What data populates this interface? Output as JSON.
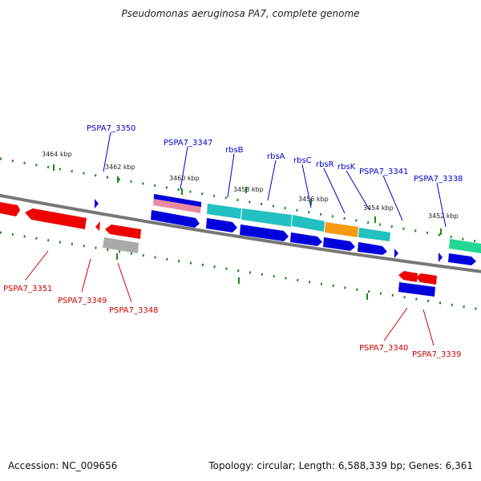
{
  "title": "Pseudomonas aeruginosa PA7, complete genome",
  "footer": {
    "accession": "Accession: NC_009656",
    "summary": "Topology: circular; Length: 6,588,339 bp; Genes: 6,361"
  },
  "scale_labels": [
    "3464 kbp",
    "3462 kbp",
    "3460 kbp",
    "3458 kbp",
    "3456 kbp",
    "3454 kbp",
    "3452 kbp"
  ],
  "top_labels": [
    "PSPA7_3350",
    "PSPA7_3347",
    "rbsB",
    "rbsA",
    "rbsC",
    "rbsR",
    "rbsK",
    "PSPA7_3341",
    "PSPA7_3338"
  ],
  "bottom_labels": [
    "PSPA7_3351",
    "PSPA7_3349",
    "PSPA7_3348",
    "PSPA7_3340",
    "PSPA7_3339"
  ],
  "colors": {
    "forward": "#0000dd",
    "reverse": "#ee0000",
    "cyan": "#22c0c0",
    "orange": "#f59a10",
    "green": "#22d890",
    "pink": "#e88aa0",
    "gray": "#aaaaaa",
    "backbone": "#777777",
    "tick": "#1a8a1a"
  }
}
